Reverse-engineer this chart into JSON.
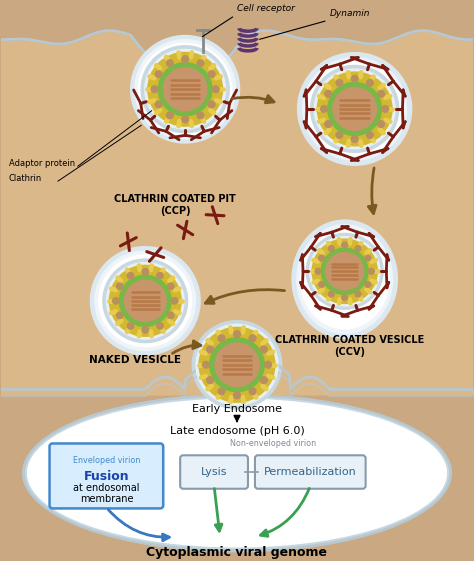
{
  "bg_color": "#c9a882",
  "cell_color": "#dbb88a",
  "membrane_color": "#b8c8d0",
  "white": "#ffffff",
  "clathrin_color": "#7a1a10",
  "dynamin_color": "#5a3570",
  "yellow_outer": "#d4b830",
  "yellow_spike": "#e8cc50",
  "green_ring": "#78b848",
  "tan_body": "#c8956a",
  "tan_inner": "#b87848",
  "gray_receptor": "#888888",
  "adaptor_tan": "#b89060",
  "arrow_brown": "#7a5820",
  "arrow_blue": "#3878c0",
  "arrow_green": "#38a050",
  "endosome_fill": "#ffffff",
  "endosome_border": "#a0b8c0",
  "box_blue_border": "#4488cc",
  "box_blue_fill": "#d8eeff",
  "box_gray_border": "#8899aa",
  "box_gray_fill": "#e8f0f8",
  "fusion_color": "#1a44aa",
  "lysis_color": "#336688",
  "title_text": "Cytoplasmic viral genome",
  "early_text": "Early Endosome",
  "late_text": "Late endosome (pH 6.0)",
  "enveloped_text": "Enveloped virion",
  "non_enveloped_text": "Non-enveloped virion",
  "fusion_text": "Fusion",
  "fusion_sub": "at endosomal\nmembrane",
  "lysis_text": "Lysis",
  "perm_text": "Permeabilization",
  "ccp_label": "CLATHRIN COATED PIT",
  "ccp_label2": "(CCP)",
  "ccv_label": "CLATHRIN COATED VESICLE",
  "ccv_label2": "(CCV)",
  "naked_label": "NAKED VESICLE",
  "cell_receptor_label": "Cell receptor",
  "dynamin_label": "Dynamin",
  "adaptor_label": "Adaptor protein",
  "clathrin_label": "Clathrin"
}
